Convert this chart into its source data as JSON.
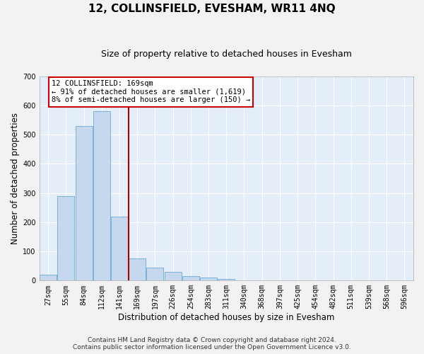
{
  "title": "12, COLLINSFIELD, EVESHAM, WR11 4NQ",
  "subtitle": "Size of property relative to detached houses in Evesham",
  "xlabel": "Distribution of detached houses by size in Evesham",
  "ylabel": "Number of detached properties",
  "footnote1": "Contains HM Land Registry data © Crown copyright and database right 2024.",
  "footnote2": "Contains public sector information licensed under the Open Government Licence v3.0.",
  "categories": [
    "27sqm",
    "55sqm",
    "84sqm",
    "112sqm",
    "141sqm",
    "169sqm",
    "197sqm",
    "226sqm",
    "254sqm",
    "283sqm",
    "311sqm",
    "340sqm",
    "368sqm",
    "397sqm",
    "425sqm",
    "454sqm",
    "482sqm",
    "511sqm",
    "539sqm",
    "568sqm",
    "596sqm"
  ],
  "values": [
    20,
    290,
    530,
    580,
    220,
    75,
    45,
    30,
    15,
    10,
    5,
    0,
    0,
    0,
    0,
    0,
    0,
    0,
    0,
    0,
    0
  ],
  "bar_color": "#c5d8ed",
  "bar_edge_color": "#6aaad4",
  "red_line_x": 5,
  "annotation_text": "12 COLLINSFIELD: 169sqm\n← 91% of detached houses are smaller (1,619)\n8% of semi-detached houses are larger (150) →",
  "annotation_box_facecolor": "#ffffff",
  "annotation_box_edgecolor": "#cc0000",
  "ylim": [
    0,
    700
  ],
  "yticks": [
    0,
    100,
    200,
    300,
    400,
    500,
    600,
    700
  ],
  "plot_bg_color": "#e4eef8",
  "fig_bg_color": "#f2f2f2",
  "grid_color": "#ffffff",
  "title_fontsize": 11,
  "subtitle_fontsize": 9,
  "xlabel_fontsize": 8.5,
  "ylabel_fontsize": 8.5,
  "tick_fontsize": 7,
  "annot_fontsize": 7.5,
  "footnote_fontsize": 6.5,
  "red_line_color": "#aa0000"
}
